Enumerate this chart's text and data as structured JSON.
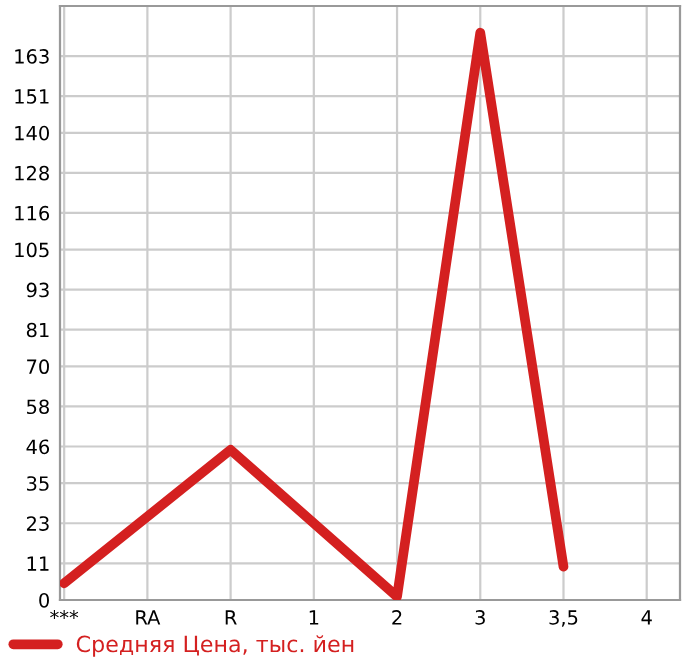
{
  "chart_data": {
    "type": "line",
    "categories": [
      "***",
      "RA",
      "R",
      "1",
      "2",
      "3",
      "3,5",
      "4"
    ],
    "series": [
      {
        "name": "Средняя Цена, тыс. йен",
        "color": "#d42020",
        "values": [
          5,
          null,
          45,
          null,
          1,
          170,
          10,
          null
        ]
      }
    ],
    "ylim": [
      0,
      178
    ],
    "yticks": [
      0,
      11,
      23,
      35,
      46,
      58,
      70,
      81,
      93,
      105,
      116,
      128,
      140,
      151,
      163
    ],
    "grid": true,
    "legend": "bottom",
    "marker": "none",
    "line_style": "solid"
  }
}
